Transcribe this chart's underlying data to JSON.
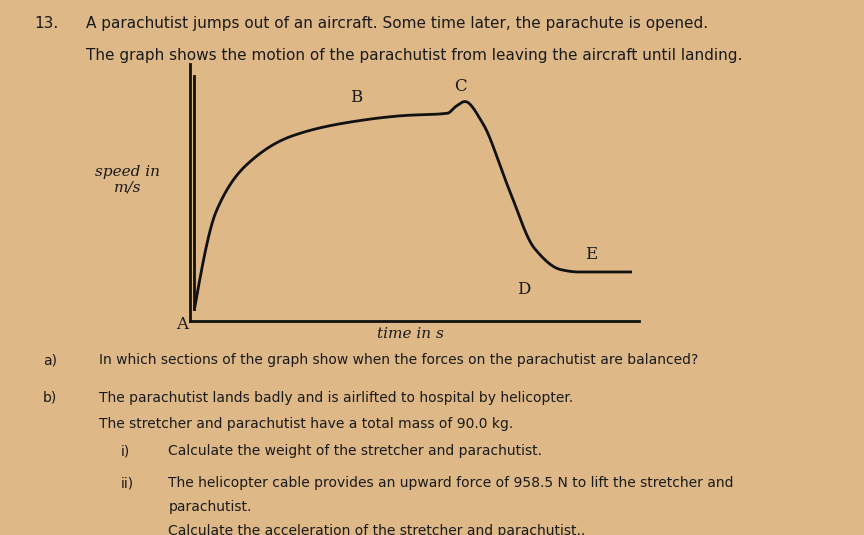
{
  "background_color": "#deb887",
  "title_number": "13.",
  "title_line1": "A parachutist jumps out of an aircraft. Some time later, the parachute is opened.",
  "title_line2": "The graph shows the motion of the parachutist from leaving the aircraft until landing.",
  "ylabel": "speed in\nm/s",
  "xlabel": "time in s",
  "point_labels": [
    "A",
    "B",
    "C",
    "D",
    "E"
  ],
  "axis_line_color": "#111111",
  "curve_color": "#111111",
  "curve_linewidth": 2.0,
  "label_fontsize": 11,
  "text_color": "#1a1a1a",
  "title_fontsize": 11,
  "q_fontsize": 10
}
